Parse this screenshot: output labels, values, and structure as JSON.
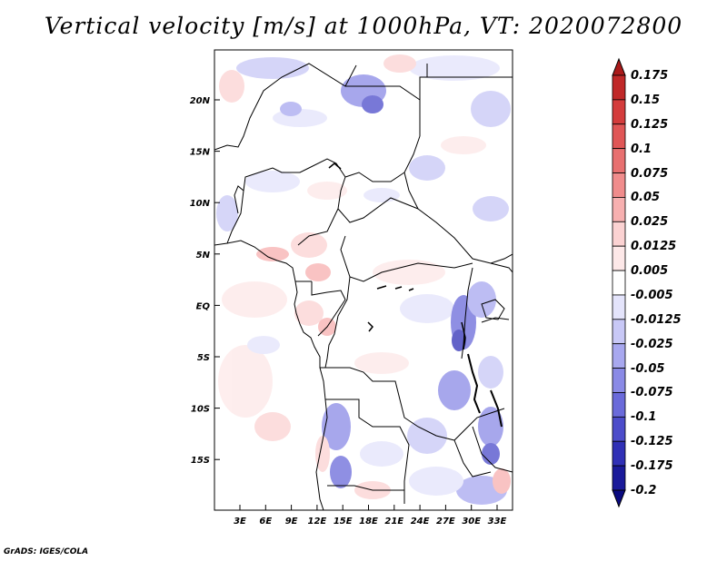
{
  "title": "Vertical velocity [m/s] at 1000hPa, VT: 2020072800",
  "credit": "GrADS: IGES/COLA",
  "map": {
    "lat_ticks": [
      "20N",
      "15N",
      "10N",
      "5N",
      "EQ",
      "5S",
      "10S",
      "15S"
    ],
    "lon_ticks": [
      "3E",
      "6E",
      "9E",
      "12E",
      "15E",
      "18E",
      "21E",
      "24E",
      "27E",
      "30E",
      "33E"
    ]
  },
  "colorbar": {
    "labels": [
      "0.175",
      "0.15",
      "0.125",
      "0.1",
      "0.075",
      "0.05",
      "0.025",
      "0.0125",
      "0.005",
      "-0.005",
      "-0.0125",
      "-0.025",
      "-0.05",
      "-0.075",
      "-0.1",
      "-0.125",
      "-0.175",
      "-0.2"
    ],
    "colors": [
      "#aa1a1a",
      "#c02828",
      "#d43c3c",
      "#e05656",
      "#e87070",
      "#f08c8c",
      "#f7b0b0",
      "#fbd2d2",
      "#fde8e8",
      "#ffffff",
      "#e4e4fb",
      "#c8c8f6",
      "#a8a8ef",
      "#8a8ae6",
      "#6a6ada",
      "#4c4cca",
      "#3030b6",
      "#1a1a9a",
      "#0a0a80"
    ]
  }
}
